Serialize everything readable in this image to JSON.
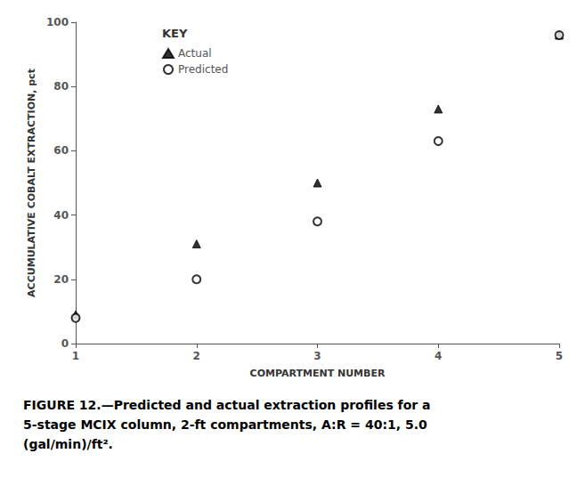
{
  "chart_data": {
    "type": "scatter",
    "xlabel": "COMPARTMENT NUMBER",
    "ylabel": "ACCUMULATIVE COBALT EXTRACTION, pct",
    "x": [
      1,
      2,
      3,
      4,
      5
    ],
    "series": [
      {
        "name": "Actual",
        "color": "#000000",
        "marker": "triangle",
        "values": [
          9,
          31,
          50,
          73,
          96
        ]
      },
      {
        "name": "Predicted",
        "color": "#000000",
        "marker": "open_circle",
        "values": [
          8,
          20,
          38,
          63,
          96
        ]
      }
    ],
    "xlim": [
      1,
      5
    ],
    "ylim": [
      0,
      100
    ],
    "xticks": [
      1,
      2,
      3,
      4,
      5
    ],
    "yticks": [
      0,
      20,
      40,
      60,
      80,
      100
    ],
    "grid": false,
    "legend": "upper left",
    "legend_title": "KEY",
    "caption": [
      "FIGURE 12.—Predicted and actual extraction profiles for a",
      "5-stage MCIX column, 2-ft compartments, A:R = 40:1, 5.0",
      "(gal/min)/ft²."
    ]
  }
}
